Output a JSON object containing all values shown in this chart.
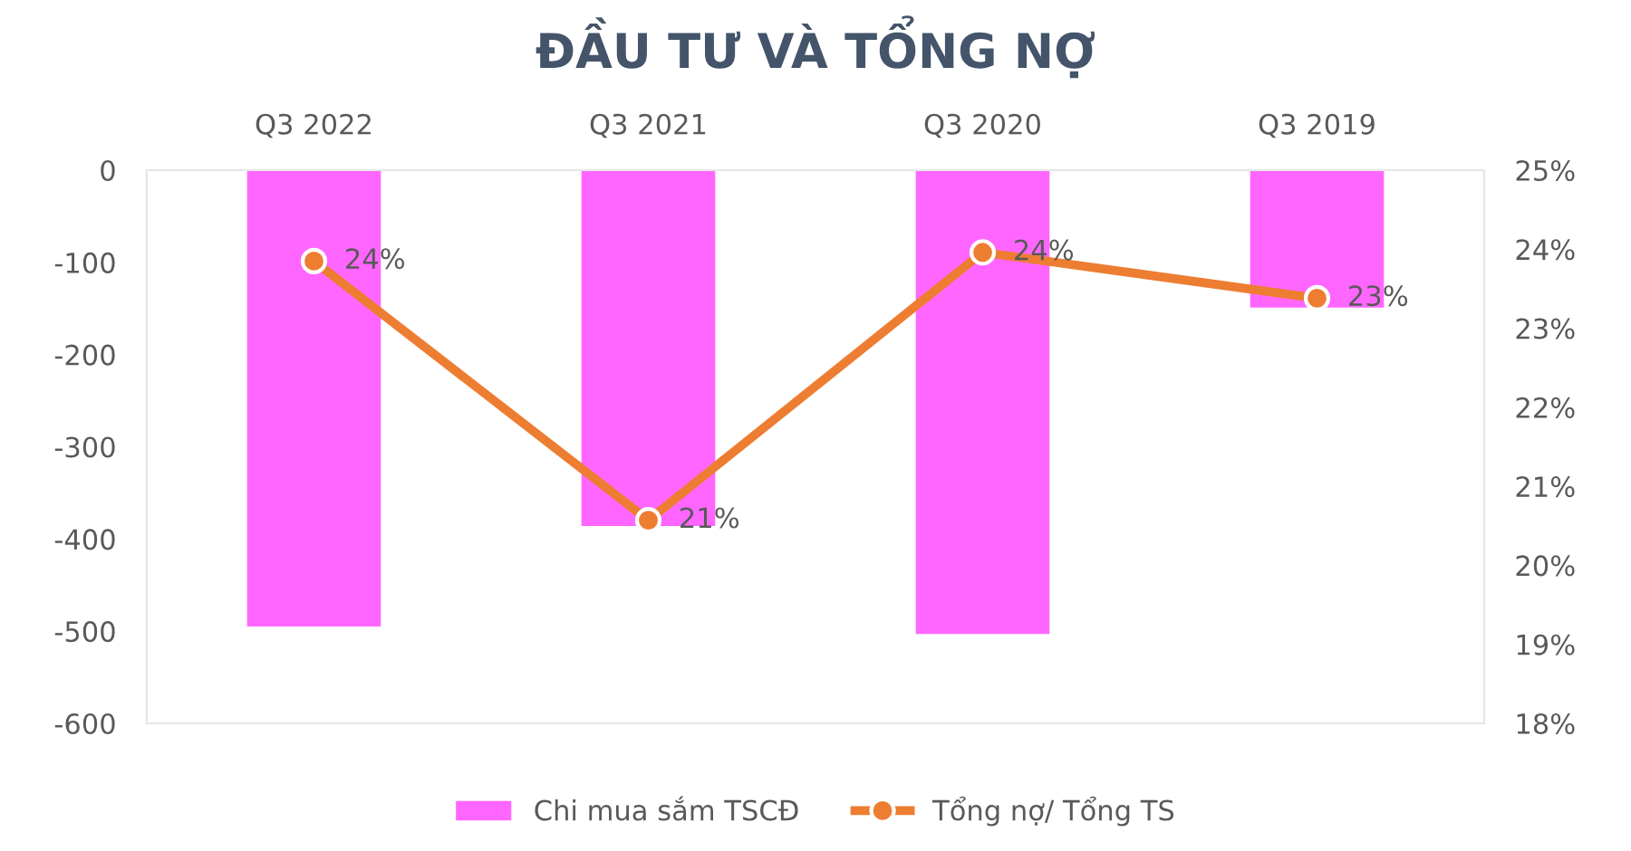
{
  "chart_data": {
    "type": "bar",
    "title": "ĐẦU TƯ VÀ TỔNG NỢ",
    "categories": [
      "Q3 2022",
      "Q3 2021",
      "Q3 2020",
      "Q3 2019"
    ],
    "series": [
      {
        "name": "Chi mua sắm TSCĐ",
        "color": "#ff66ff",
        "values": [
          -495,
          -386,
          -503,
          -149
        ]
      },
      {
        "name": "Tổng nợ/ Tổng TS",
        "type": "line",
        "axis": "y2",
        "color": "#ed7d31",
        "marker": "circle",
        "values": [
          23.85,
          20.57,
          23.96,
          23.38
        ],
        "value_labels": [
          "24%",
          "21%",
          "24%",
          "23%"
        ]
      }
    ],
    "ylim": [
      -600,
      0
    ],
    "yticks": [
      -600,
      -500,
      -400,
      -300,
      -200,
      -100,
      0
    ],
    "y2lim": [
      18,
      25
    ],
    "y2ticks": [
      {
        "value": 18,
        "label": "18%"
      },
      {
        "value": 19,
        "label": "19%"
      },
      {
        "value": 20,
        "label": "20%"
      },
      {
        "value": 21,
        "label": "21%"
      },
      {
        "value": 22,
        "label": "22%"
      },
      {
        "value": 23,
        "label": "23%"
      },
      {
        "value": 24,
        "label": "24%"
      },
      {
        "value": 25,
        "label": "25%"
      }
    ],
    "grid": false,
    "legend": "bottom"
  }
}
